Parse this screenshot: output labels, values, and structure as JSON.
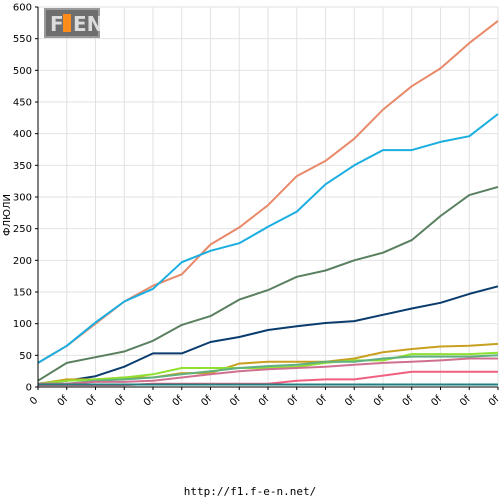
{
  "footer": {
    "url": "http://f1.f-e-n.net/"
  },
  "logo": {
    "text": "F1EN"
  },
  "chart_data": {
    "type": "line",
    "ylabel": "ФЛЮЛИ",
    "xlabel": "",
    "ylim": [
      0,
      600
    ],
    "yticks": [
      0,
      50,
      100,
      150,
      200,
      250,
      300,
      350,
      400,
      450,
      500,
      550,
      600
    ],
    "x_tick_labels": [
      "0",
      "0f",
      "0f",
      "0f",
      "0f",
      "0f",
      "0f",
      "0f",
      "0f",
      "0f",
      "0f",
      "0f",
      "0f",
      "0f",
      "0f",
      "0f",
      "0f"
    ],
    "grid": true,
    "series": [
      {
        "color": "#e8896a",
        "values": [
          38,
          65,
          100,
          135,
          160,
          178,
          225,
          252,
          287,
          333,
          357,
          392,
          438,
          475,
          503,
          543,
          578
        ]
      },
      {
        "color": "#1aaee0",
        "values": [
          38,
          65,
          102,
          135,
          155,
          197,
          215,
          227,
          253,
          277,
          320,
          350,
          374,
          374,
          387,
          396,
          431
        ]
      },
      {
        "color": "#5a8060",
        "values": [
          10,
          38,
          47,
          56,
          73,
          98,
          112,
          138,
          153,
          174,
          184,
          200,
          212,
          232,
          270,
          303,
          316
        ]
      },
      {
        "color": "#0b3c6e",
        "values": [
          5,
          10,
          17,
          32,
          53,
          53,
          71,
          79,
          90,
          96,
          101,
          104,
          114,
          124,
          133,
          147,
          159
        ]
      },
      {
        "color": "#c8a020",
        "values": [
          5,
          12,
          12,
          15,
          15,
          22,
          22,
          37,
          40,
          40,
          40,
          45,
          55,
          60,
          64,
          65,
          68
        ]
      },
      {
        "color": "#90e030",
        "values": [
          5,
          10,
          12,
          15,
          20,
          30,
          30,
          30,
          30,
          32,
          38,
          42,
          42,
          52,
          52,
          52,
          54
        ]
      },
      {
        "color": "#60b080",
        "values": [
          5,
          5,
          10,
          12,
          15,
          20,
          25,
          30,
          33,
          35,
          40,
          40,
          45,
          48,
          48,
          48,
          50
        ]
      },
      {
        "color": "#d07090",
        "values": [
          5,
          5,
          8,
          8,
          10,
          15,
          20,
          25,
          28,
          30,
          32,
          35,
          38,
          40,
          42,
          45,
          45
        ]
      },
      {
        "color": "#f06080",
        "values": [
          3,
          3,
          3,
          3,
          5,
          5,
          5,
          5,
          5,
          10,
          12,
          12,
          18,
          24,
          24,
          24,
          24
        ]
      },
      {
        "color": "#208080",
        "values": [
          4,
          4,
          4,
          4,
          4,
          4,
          4,
          4,
          4,
          4,
          4,
          4,
          4,
          4,
          4,
          4,
          4
        ]
      }
    ]
  }
}
